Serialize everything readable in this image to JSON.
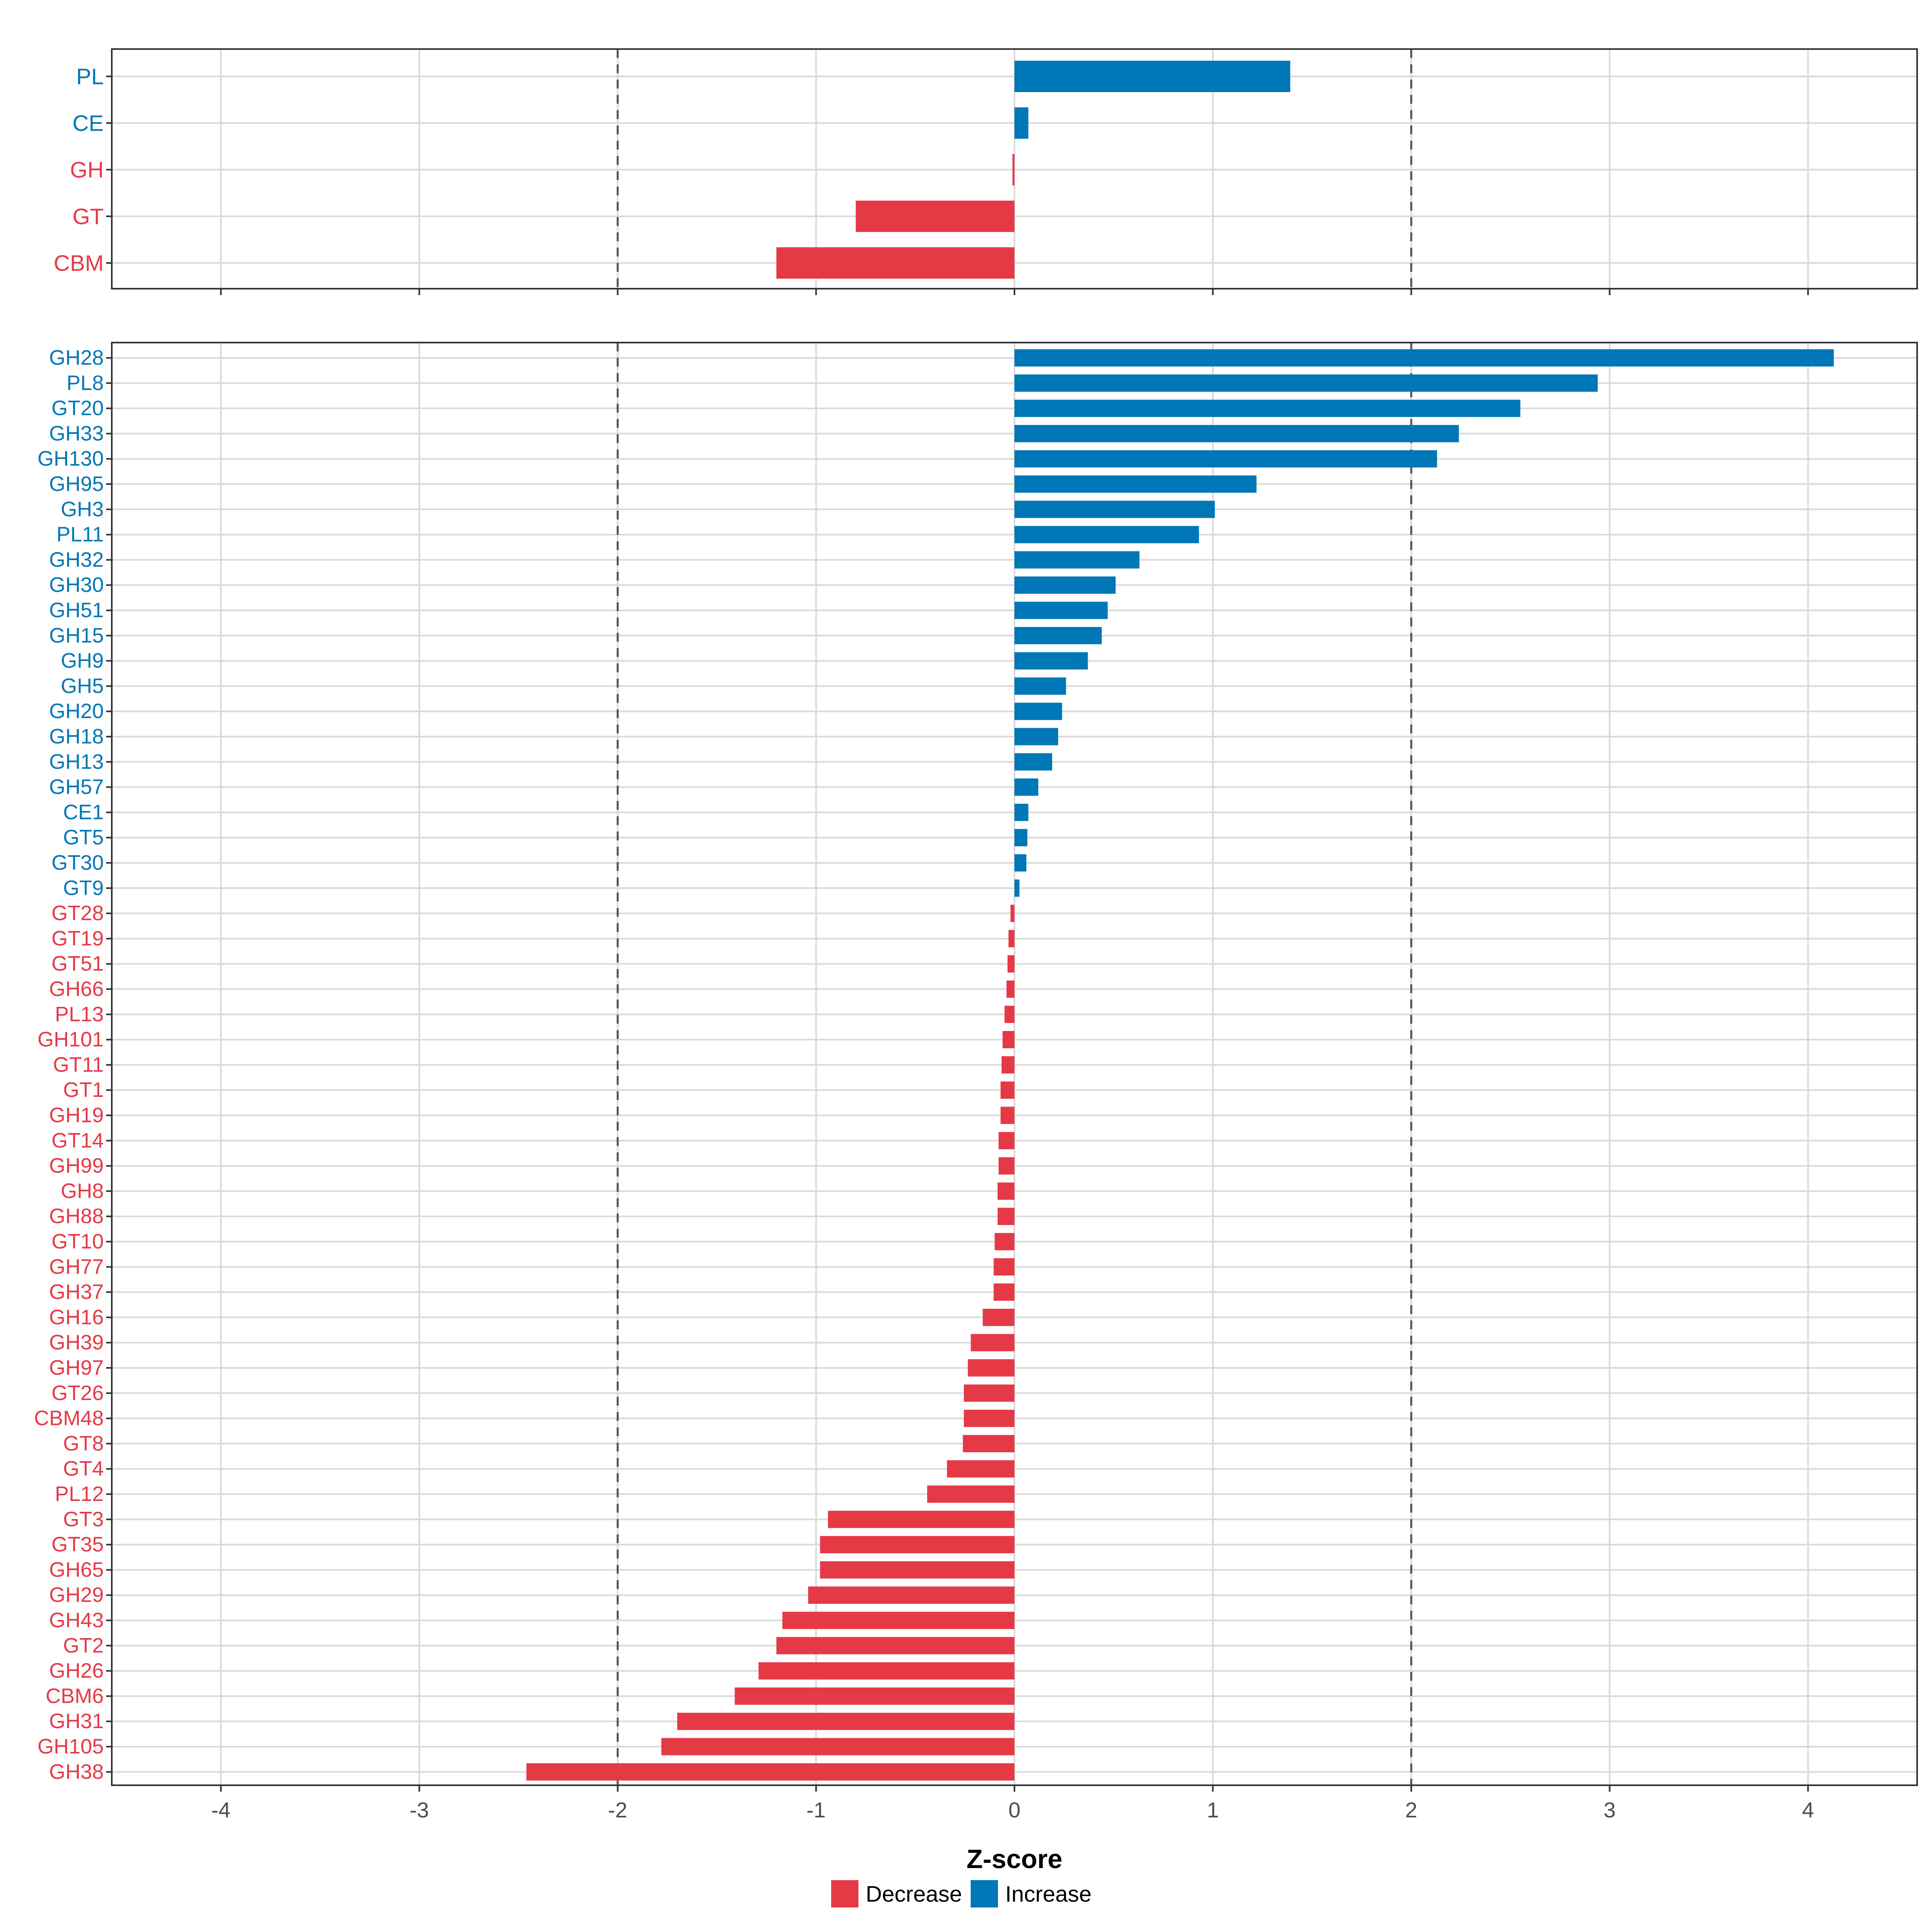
{
  "colors": {
    "decrease": "#E63946",
    "increase": "#0077B6",
    "grid": "#D9D9D9",
    "panel_border": "#333333",
    "reference_line": "#555555"
  },
  "chart_data": [
    {
      "type": "bar",
      "orientation": "horizontal",
      "panel": "top",
      "categories": [
        "PL",
        "CE",
        "GH",
        "GT",
        "CBM"
      ],
      "values": [
        1.39,
        0.07,
        -0.01,
        -0.8,
        -1.2
      ],
      "xlim": [
        -4.55,
        4.55
      ],
      "xticks": [
        -4,
        -3,
        -2,
        -1,
        0,
        1,
        2,
        3,
        4
      ],
      "reference_lines": [
        -2,
        2
      ],
      "tick_labels_shown": false
    },
    {
      "type": "bar",
      "orientation": "horizontal",
      "panel": "bottom",
      "categories": [
        "GH28",
        "PL8",
        "GT20",
        "GH33",
        "GH130",
        "GH95",
        "GH3",
        "PL11",
        "GH32",
        "GH30",
        "GH51",
        "GH15",
        "GH9",
        "GH5",
        "GH20",
        "GH18",
        "GH13",
        "GH57",
        "CE1",
        "GT5",
        "GT30",
        "GT9",
        "GT28",
        "GT19",
        "GT51",
        "GH66",
        "PL13",
        "GH101",
        "GT11",
        "GT1",
        "GH19",
        "GT14",
        "GH99",
        "GH8",
        "GH88",
        "GT10",
        "GH77",
        "GH37",
        "GH16",
        "GH39",
        "GH97",
        "GT26",
        "CBM48",
        "GT8",
        "GT4",
        "PL12",
        "GT3",
        "GT35",
        "GH65",
        "GH29",
        "GH43",
        "GT2",
        "GH26",
        "CBM6",
        "GH31",
        "GH105",
        "GH38"
      ],
      "values": [
        4.13,
        2.94,
        2.55,
        2.24,
        2.13,
        1.22,
        1.01,
        0.93,
        0.63,
        0.51,
        0.47,
        0.44,
        0.37,
        0.26,
        0.24,
        0.22,
        0.19,
        0.12,
        0.07,
        0.065,
        0.06,
        0.025,
        -0.02,
        -0.03,
        -0.035,
        -0.04,
        -0.05,
        -0.06,
        -0.065,
        -0.07,
        -0.07,
        -0.08,
        -0.08,
        -0.085,
        -0.085,
        -0.1,
        -0.105,
        -0.105,
        -0.16,
        -0.22,
        -0.235,
        -0.255,
        -0.255,
        -0.26,
        -0.34,
        -0.44,
        -0.94,
        -0.98,
        -0.98,
        -1.04,
        -1.17,
        -1.2,
        -1.29,
        -1.41,
        -1.7,
        -1.78,
        -2.46
      ],
      "xlim": [
        -4.55,
        4.55
      ],
      "xticks": [
        -4,
        -3,
        -2,
        -1,
        0,
        1,
        2,
        3,
        4
      ],
      "tick_labels": [
        "-4",
        "-3",
        "-2",
        "-1",
        "0",
        "1",
        "2",
        "3",
        "4"
      ],
      "reference_lines": [
        -2,
        2
      ],
      "xlabel": "Z-score"
    }
  ],
  "legend": {
    "position": "bottom",
    "items": [
      {
        "label": "Decrease",
        "color": "#E63946"
      },
      {
        "label": "Increase",
        "color": "#0077B6"
      }
    ]
  }
}
